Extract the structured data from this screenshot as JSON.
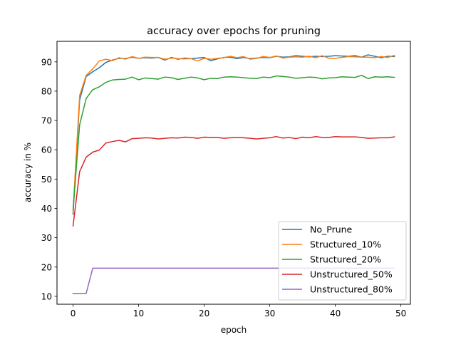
{
  "chart_data": {
    "type": "line",
    "title": "accuracy over epochs for pruning",
    "xlabel": "epoch",
    "ylabel": "accuracy in %",
    "xlim": [
      -2.45,
      51.45
    ],
    "ylim": [
      7.3,
      97.0
    ],
    "xticks": [
      0,
      10,
      20,
      30,
      40,
      50
    ],
    "yticks": [
      10,
      20,
      30,
      40,
      50,
      60,
      70,
      80,
      90
    ],
    "grid": false,
    "legend_position": "lower right",
    "x": [
      0,
      1,
      2,
      3,
      4,
      5,
      6,
      7,
      8,
      9,
      10,
      11,
      12,
      13,
      14,
      15,
      16,
      17,
      18,
      19,
      20,
      21,
      22,
      23,
      24,
      25,
      26,
      27,
      28,
      29,
      30,
      31,
      32,
      33,
      34,
      35,
      36,
      37,
      38,
      39,
      40,
      41,
      42,
      43,
      44,
      45,
      46,
      47,
      48,
      49
    ],
    "series": [
      {
        "name": "No_Prune",
        "color": "#1f77b4",
        "values": [
          38.0,
          77.0,
          85.0,
          86.6,
          88.0,
          89.8,
          90.6,
          91.2,
          91.1,
          91.6,
          91.2,
          91.4,
          91.3,
          91.5,
          90.6,
          91.5,
          90.9,
          91.3,
          91.1,
          91.3,
          91.5,
          90.4,
          91.0,
          91.5,
          91.6,
          91.1,
          91.5,
          91.1,
          91.3,
          91.5,
          91.4,
          91.9,
          91.6,
          91.7,
          92.1,
          91.9,
          91.7,
          91.9,
          91.8,
          91.9,
          92.1,
          92.0,
          91.9,
          92.1,
          91.6,
          92.4,
          91.9,
          91.4,
          91.9,
          91.8
        ]
      },
      {
        "name": "Structured_10%",
        "color": "#ff7f0e",
        "values": [
          39.0,
          78.5,
          85.4,
          87.6,
          90.3,
          90.9,
          90.4,
          91.4,
          90.9,
          91.8,
          91.2,
          91.6,
          91.5,
          91.5,
          90.9,
          91.3,
          91.1,
          91.0,
          91.1,
          90.3,
          91.2,
          90.9,
          91.2,
          91.4,
          91.9,
          91.4,
          91.8,
          90.9,
          91.2,
          91.8,
          91.5,
          92.0,
          91.3,
          91.6,
          91.7,
          91.6,
          91.9,
          91.4,
          92.1,
          91.2,
          91.2,
          91.5,
          91.8,
          91.7,
          91.6,
          91.6,
          91.4,
          91.8,
          91.5,
          92.2
        ]
      },
      {
        "name": "Structured_20%",
        "color": "#2ca02c",
        "values": [
          39.5,
          68.5,
          77.5,
          80.5,
          81.5,
          83.0,
          83.8,
          84.0,
          84.1,
          84.8,
          83.9,
          84.5,
          84.3,
          84.1,
          84.8,
          84.6,
          84.0,
          84.4,
          84.8,
          84.5,
          83.9,
          84.4,
          84.3,
          84.8,
          84.9,
          84.8,
          84.6,
          84.4,
          84.3,
          84.8,
          84.6,
          85.2,
          85.0,
          84.8,
          84.4,
          84.6,
          84.8,
          84.7,
          84.2,
          84.5,
          84.6,
          84.9,
          84.8,
          84.7,
          85.4,
          84.3,
          84.9,
          84.8,
          84.9,
          84.7
        ]
      },
      {
        "name": "Unstructured_50%",
        "color": "#d62728",
        "values": [
          34.0,
          52.5,
          57.5,
          59.2,
          59.9,
          62.3,
          62.8,
          63.2,
          62.7,
          63.8,
          63.9,
          64.1,
          64.0,
          63.7,
          63.9,
          64.1,
          64.0,
          64.3,
          64.2,
          63.9,
          64.3,
          64.2,
          64.2,
          63.9,
          64.1,
          64.2,
          64.1,
          63.9,
          63.7,
          63.9,
          64.1,
          64.5,
          64.0,
          64.2,
          63.8,
          64.3,
          64.1,
          64.5,
          64.2,
          64.2,
          64.5,
          64.4,
          64.4,
          64.4,
          64.2,
          63.9,
          64.0,
          64.1,
          64.1,
          64.4
        ]
      },
      {
        "name": "Unstructured_80%",
        "color": "#9467bd",
        "values": [
          11.0,
          11.0,
          11.0,
          19.6,
          19.6,
          19.6,
          19.6,
          19.6,
          19.6,
          19.6,
          19.6,
          19.6,
          19.6,
          19.6,
          19.6,
          19.6,
          19.6,
          19.6,
          19.6,
          19.6,
          19.6,
          19.6,
          19.6,
          19.6,
          19.6,
          19.6,
          19.6,
          19.6,
          19.6,
          19.6,
          19.6,
          19.6,
          19.6,
          19.6,
          19.6,
          19.6,
          19.6,
          19.6,
          19.6,
          19.6,
          19.6,
          19.6,
          19.6,
          19.6,
          19.6,
          19.6,
          19.6,
          19.6,
          19.6,
          19.6
        ]
      }
    ]
  }
}
